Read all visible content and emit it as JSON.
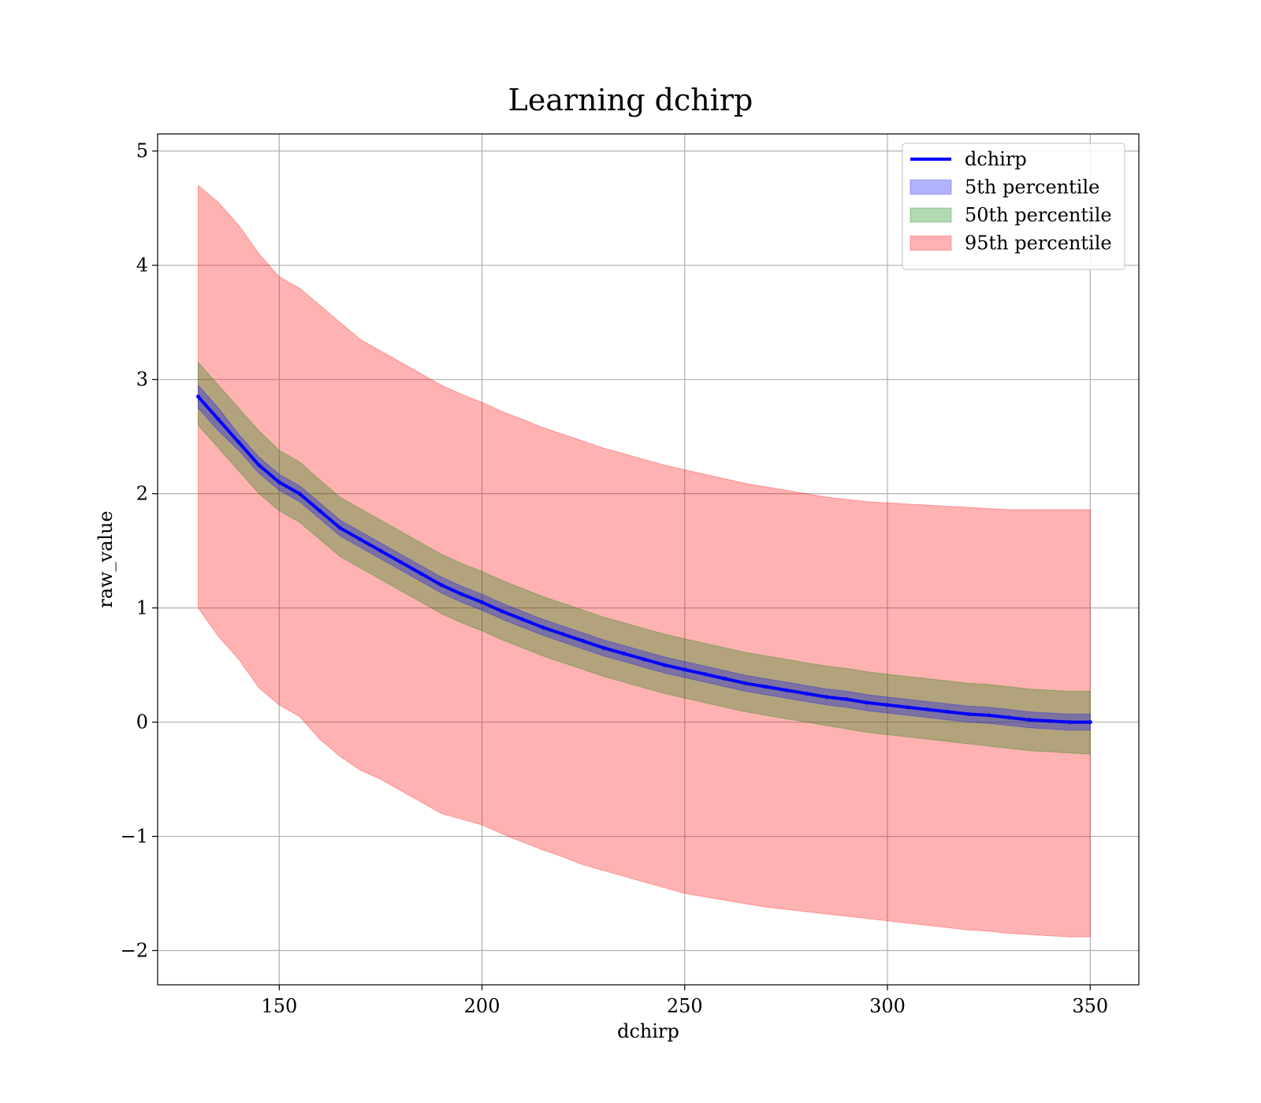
{
  "chart_data": {
    "type": "line",
    "title": "Learning dchirp",
    "xlabel": "dchirp",
    "ylabel": "raw_value",
    "xlim": [
      120,
      362
    ],
    "ylim": [
      -2.3,
      5.15
    ],
    "x_ticks": [
      150,
      200,
      250,
      300,
      350
    ],
    "y_ticks": [
      -2,
      -1,
      0,
      1,
      2,
      3,
      4,
      5
    ],
    "x_tick_labels": [
      "150",
      "200",
      "250",
      "300",
      "350"
    ],
    "y_tick_labels": [
      "−2",
      "−1",
      "0",
      "1",
      "2",
      "3",
      "4",
      "5"
    ],
    "grid": true,
    "legend_position": "top-right",
    "legend": [
      {
        "label": "dchirp",
        "kind": "line",
        "color": "#0000ff"
      },
      {
        "label": "5th percentile",
        "kind": "patch",
        "color": "#0000ff"
      },
      {
        "label": "50th percentile",
        "kind": "patch",
        "color": "#008000"
      },
      {
        "label": "95th percentile",
        "kind": "patch",
        "color": "#ff0000"
      }
    ],
    "x": [
      130,
      135,
      140,
      145,
      150,
      155,
      160,
      165,
      170,
      175,
      180,
      185,
      190,
      195,
      200,
      205,
      210,
      215,
      220,
      225,
      230,
      235,
      240,
      245,
      250,
      255,
      260,
      265,
      270,
      275,
      280,
      285,
      290,
      295,
      300,
      305,
      310,
      315,
      320,
      325,
      330,
      335,
      340,
      345,
      350
    ],
    "series": [
      {
        "name": "dchirp",
        "values": [
          2.85,
          2.65,
          2.45,
          2.25,
          2.1,
          2.0,
          1.85,
          1.7,
          1.6,
          1.5,
          1.4,
          1.3,
          1.2,
          1.12,
          1.05,
          0.97,
          0.9,
          0.83,
          0.77,
          0.71,
          0.65,
          0.6,
          0.55,
          0.5,
          0.46,
          0.42,
          0.38,
          0.34,
          0.31,
          0.28,
          0.25,
          0.22,
          0.2,
          0.17,
          0.15,
          0.13,
          0.11,
          0.09,
          0.07,
          0.06,
          0.04,
          0.02,
          0.01,
          0.0,
          0.0
        ],
        "color": "#0000ff"
      }
    ],
    "bands": [
      {
        "name": "5th percentile",
        "color": "#0000ff",
        "lower": [
          2.75,
          2.55,
          2.38,
          2.18,
          2.03,
          1.93,
          1.78,
          1.63,
          1.53,
          1.43,
          1.33,
          1.23,
          1.13,
          1.05,
          0.98,
          0.9,
          0.83,
          0.76,
          0.7,
          0.64,
          0.58,
          0.53,
          0.48,
          0.43,
          0.39,
          0.35,
          0.31,
          0.27,
          0.24,
          0.21,
          0.18,
          0.15,
          0.13,
          0.1,
          0.08,
          0.06,
          0.04,
          0.02,
          0.0,
          -0.01,
          -0.03,
          -0.05,
          -0.06,
          -0.07,
          -0.07
        ],
        "upper": [
          2.95,
          2.75,
          2.52,
          2.32,
          2.17,
          2.07,
          1.92,
          1.77,
          1.67,
          1.57,
          1.47,
          1.37,
          1.27,
          1.19,
          1.12,
          1.04,
          0.97,
          0.9,
          0.84,
          0.78,
          0.72,
          0.67,
          0.62,
          0.57,
          0.53,
          0.49,
          0.45,
          0.41,
          0.38,
          0.35,
          0.32,
          0.29,
          0.27,
          0.24,
          0.22,
          0.2,
          0.18,
          0.16,
          0.14,
          0.13,
          0.11,
          0.09,
          0.08,
          0.07,
          0.07
        ]
      },
      {
        "name": "50th percentile",
        "color": "#008000",
        "lower": [
          2.6,
          2.4,
          2.2,
          2.0,
          1.85,
          1.75,
          1.6,
          1.45,
          1.35,
          1.25,
          1.15,
          1.05,
          0.95,
          0.87,
          0.8,
          0.72,
          0.65,
          0.58,
          0.52,
          0.46,
          0.4,
          0.35,
          0.3,
          0.25,
          0.21,
          0.17,
          0.13,
          0.09,
          0.06,
          0.03,
          0.0,
          -0.03,
          -0.06,
          -0.09,
          -0.11,
          -0.13,
          -0.15,
          -0.17,
          -0.19,
          -0.21,
          -0.23,
          -0.25,
          -0.26,
          -0.27,
          -0.28
        ],
        "upper": [
          3.15,
          2.95,
          2.75,
          2.55,
          2.38,
          2.28,
          2.12,
          1.97,
          1.87,
          1.77,
          1.67,
          1.57,
          1.47,
          1.39,
          1.32,
          1.24,
          1.17,
          1.1,
          1.04,
          0.98,
          0.92,
          0.87,
          0.82,
          0.77,
          0.73,
          0.69,
          0.65,
          0.61,
          0.58,
          0.55,
          0.52,
          0.49,
          0.47,
          0.44,
          0.42,
          0.4,
          0.38,
          0.36,
          0.34,
          0.33,
          0.31,
          0.29,
          0.28,
          0.27,
          0.27
        ]
      },
      {
        "name": "95th percentile",
        "color": "#ff0000",
        "lower": [
          1.0,
          0.75,
          0.55,
          0.3,
          0.15,
          0.05,
          -0.15,
          -0.3,
          -0.42,
          -0.5,
          -0.6,
          -0.7,
          -0.8,
          -0.85,
          -0.9,
          -0.98,
          -1.05,
          -1.12,
          -1.18,
          -1.25,
          -1.3,
          -1.35,
          -1.4,
          -1.45,
          -1.5,
          -1.53,
          -1.56,
          -1.59,
          -1.62,
          -1.64,
          -1.66,
          -1.68,
          -1.7,
          -1.72,
          -1.74,
          -1.76,
          -1.78,
          -1.8,
          -1.82,
          -1.83,
          -1.85,
          -1.86,
          -1.87,
          -1.88,
          -1.88
        ],
        "upper": [
          4.7,
          4.55,
          4.35,
          4.1,
          3.9,
          3.8,
          3.65,
          3.5,
          3.35,
          3.25,
          3.15,
          3.05,
          2.95,
          2.87,
          2.8,
          2.72,
          2.65,
          2.58,
          2.52,
          2.46,
          2.4,
          2.35,
          2.3,
          2.25,
          2.21,
          2.17,
          2.13,
          2.09,
          2.06,
          2.03,
          2.0,
          1.97,
          1.95,
          1.93,
          1.92,
          1.91,
          1.9,
          1.89,
          1.88,
          1.87,
          1.86,
          1.86,
          1.86,
          1.86,
          1.86
        ]
      }
    ]
  }
}
